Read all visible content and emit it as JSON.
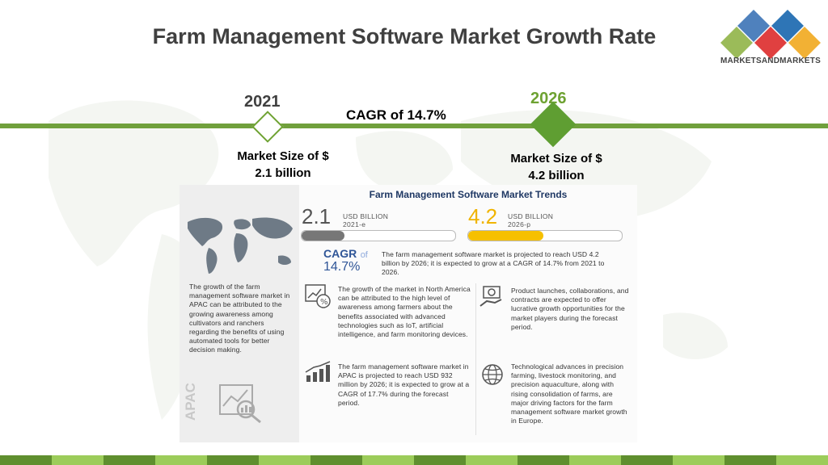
{
  "slide": {
    "title": "Farm Management Software Market Growth Rate",
    "logo_text": "MARKETSANDMARKETS",
    "year_start": "2021",
    "year_end": "2026",
    "cagr_label": "CAGR of 14.7%",
    "market_start_line1": "Market Size of $",
    "market_start_line2": "2.1 billion",
    "market_end_line1": "Market Size of $",
    "market_end_line2": "4.2 billion",
    "colors": {
      "accent_green": "#70a03c",
      "panel_bar_gray": "#777777",
      "panel_bar_yellow": "#f6c000"
    }
  },
  "infographic": {
    "title": "Farm Management Software Market Trends",
    "value_2021": "2.1",
    "unit_2021": "USD BILLION",
    "label_2021": "2021-e",
    "value_2026": "4.2",
    "unit_2026": "USD BILLION",
    "label_2026": "2026-p",
    "bar_2021_fraction": 0.28,
    "bar_2026_fraction": 0.49,
    "cagr_word": "CAGR",
    "cagr_of": "of",
    "cagr_value": "14.7%",
    "summary": "The farm management software market is projected to reach USD 4.2 billion by 2026; it is expected to grow at a CAGR of 14.7% from 2021 to 2026.",
    "apac_side": "The growth of the farm management software market in APAC can be attributed to the growing awareness among cultivators and ranchers regarding the benefits of using automated tools for better decision making.",
    "apac_label": "APAC",
    "point_north_america": "The growth of the market in North America can be attributed to the high level of awareness among farmers about the benefits associated with advanced technologies such as IoT, artificial intelligence, and farm monitoring devices.",
    "point_apac": "The farm management software market in APAC is projected to reach USD 932 million by 2026; it is expected to grow at a CAGR of 17.7% during the forecast period.",
    "point_products": "Product launches, collaborations, and contracts are expected to offer lucrative growth opportunities for the market players during the forecast period.",
    "point_europe": "Technological advances in precision farming, livestock monitoring, and precision aquaculture, along with rising consolidation of farms, are major driving factors for the farm management software market growth in Europe.",
    "icons": [
      "world-map-icon",
      "percent-chart-icon",
      "bar-growth-icon",
      "money-hand-icon",
      "globe-icon",
      "analytics-magnifier-icon"
    ]
  }
}
